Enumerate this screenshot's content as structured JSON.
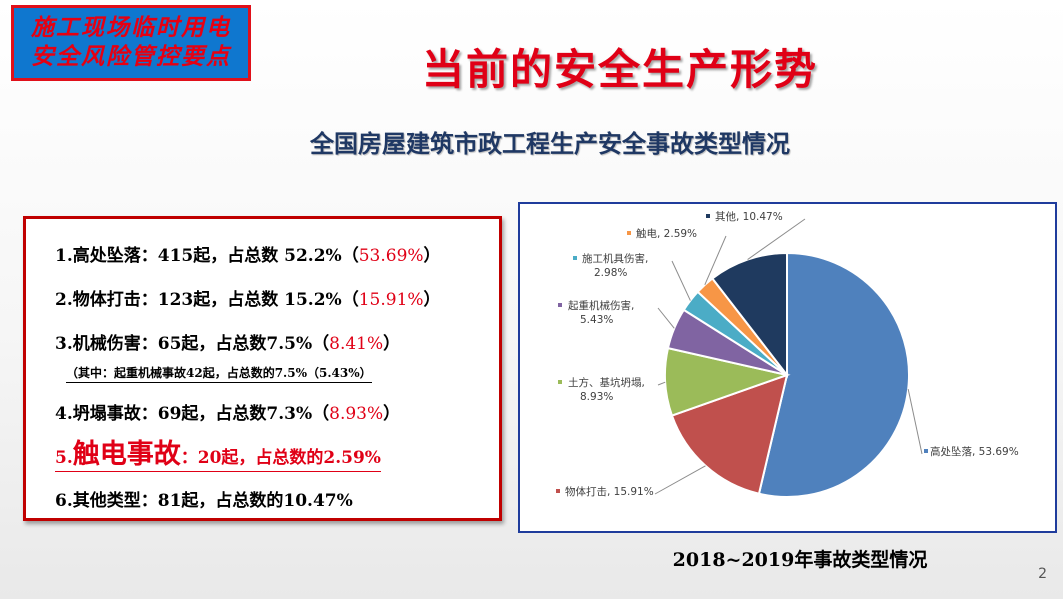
{
  "badge": {
    "line1": "施工现场临时用电",
    "line2": "安全风险管控要点"
  },
  "title": "当前的安全生产形势",
  "subtitle": "全国房屋建筑市政工程生产安全事故类型情况",
  "stats": [
    {
      "label": "1.高处坠落：415起，占总数 52.2%（",
      "pct": "53.69%",
      "tail": "）"
    },
    {
      "label": "2.物体打击：123起，占总数 15.2%（",
      "pct": "15.91%",
      "tail": "）"
    },
    {
      "label": "3.机械伤害：65起，占总数7.5%（",
      "pct": "8.41%",
      "tail": "）"
    },
    {
      "note": "（其中：起重机械事故42起，占总数的7.5%（5.43%）"
    },
    {
      "label": "4.坍塌事故：69起，占总数7.3%（",
      "pct": "8.93%",
      "tail": "）"
    },
    {
      "prefix": "5.",
      "big": "触电事故",
      "rest": "：20起，占总数的2.59%"
    },
    {
      "label": "6.其他类型：81起，占总数的10.47%"
    }
  ],
  "chart_data": {
    "type": "pie",
    "slices": [
      {
        "label": "高处坠落",
        "value": 53.69,
        "display": "高处坠落, 53.69%",
        "color": "#4f81bd"
      },
      {
        "label": "物体打击",
        "value": 15.91,
        "display": "物体打击, 15.91%",
        "color": "#c0504d"
      },
      {
        "label": "土方、基坑坍塌",
        "value": 8.93,
        "display": [
          "土方、基坑坍塌,",
          "8.93%"
        ],
        "color": "#9bbb59"
      },
      {
        "label": "起重机械伤害",
        "value": 5.43,
        "display": [
          "起重机械伤害,",
          "5.43%"
        ],
        "color": "#8064a2"
      },
      {
        "label": "施工机具伤害",
        "value": 2.98,
        "display": [
          "施工机具伤害,",
          "2.98%"
        ],
        "color": "#4bacc6"
      },
      {
        "label": "触电",
        "value": 2.59,
        "display": "触电, 2.59%",
        "color": "#f79646"
      },
      {
        "label": "其他",
        "value": 10.47,
        "display": "其他, 10.47%",
        "color": "#1f3a5f"
      }
    ]
  },
  "caption": "2018~2019年事故类型情况",
  "page_number": "2"
}
